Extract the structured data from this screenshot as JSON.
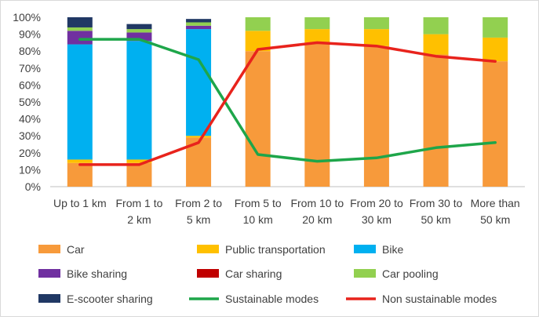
{
  "chart_data": {
    "type": "bar",
    "subtype": "stacked_percent_with_lines",
    "categories": [
      [
        "Up to 1 km"
      ],
      [
        "From 1 to",
        "2 km"
      ],
      [
        "From 2 to",
        "5 km"
      ],
      [
        "From 5 to",
        "10 km"
      ],
      [
        "From 10 to",
        "20 km"
      ],
      [
        "From 20 to",
        "30 km"
      ],
      [
        "From 30 to",
        "50 km"
      ],
      [
        "More than",
        "50 km"
      ]
    ],
    "y_ticks": [
      "0%",
      "10%",
      "20%",
      "30%",
      "40%",
      "50%",
      "60%",
      "70%",
      "80%",
      "90%",
      "100%"
    ],
    "ylim": [
      0,
      100
    ],
    "series": [
      {
        "name": "Car",
        "color": "#F79A3B",
        "type": "bar",
        "values": [
          14,
          14,
          29,
          80,
          85,
          83,
          78,
          74
        ]
      },
      {
        "name": "Public transportation",
        "color": "#FFC000",
        "type": "bar",
        "values": [
          2,
          2,
          1,
          12,
          8,
          10,
          12,
          14
        ]
      },
      {
        "name": "Bike",
        "color": "#00B0F0",
        "type": "bar",
        "values": [
          68,
          70,
          63,
          0,
          0,
          0,
          0,
          0
        ]
      },
      {
        "name": "Bike sharing",
        "color": "#7030A0",
        "type": "bar",
        "values": [
          8,
          5,
          2,
          0,
          0,
          0,
          0,
          0
        ]
      },
      {
        "name": "Car sharing",
        "color": "#C00000",
        "type": "bar",
        "values": [
          0,
          0,
          0,
          0,
          0,
          0,
          0,
          0
        ]
      },
      {
        "name": "Car pooling",
        "color": "#92D050",
        "type": "bar",
        "values": [
          2,
          2,
          2,
          8,
          7,
          7,
          10,
          12
        ]
      },
      {
        "name": "E-scooter sharing",
        "color": "#203864",
        "type": "bar",
        "values": [
          6,
          3,
          2,
          0,
          0,
          0,
          0,
          0
        ]
      },
      {
        "name": "Sustainable modes",
        "color": "#1EA64A",
        "type": "line",
        "values": [
          87,
          87,
          75,
          19,
          15,
          17,
          23,
          26
        ]
      },
      {
        "name": "Non sustainable modes",
        "color": "#E8231C",
        "type": "line",
        "values": [
          13,
          13,
          26,
          81,
          85,
          83,
          77,
          74
        ]
      }
    ],
    "legend_position": "bottom",
    "grid": false,
    "title": "",
    "xlabel": "",
    "ylabel": ""
  }
}
